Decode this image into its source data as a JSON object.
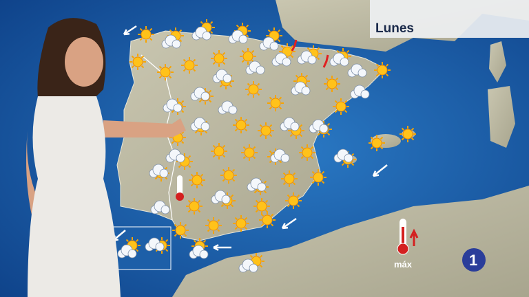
{
  "header": {
    "title": "Lunes"
  },
  "legend": {
    "max_label": "máx"
  },
  "logo": {
    "label": "1"
  }
}
